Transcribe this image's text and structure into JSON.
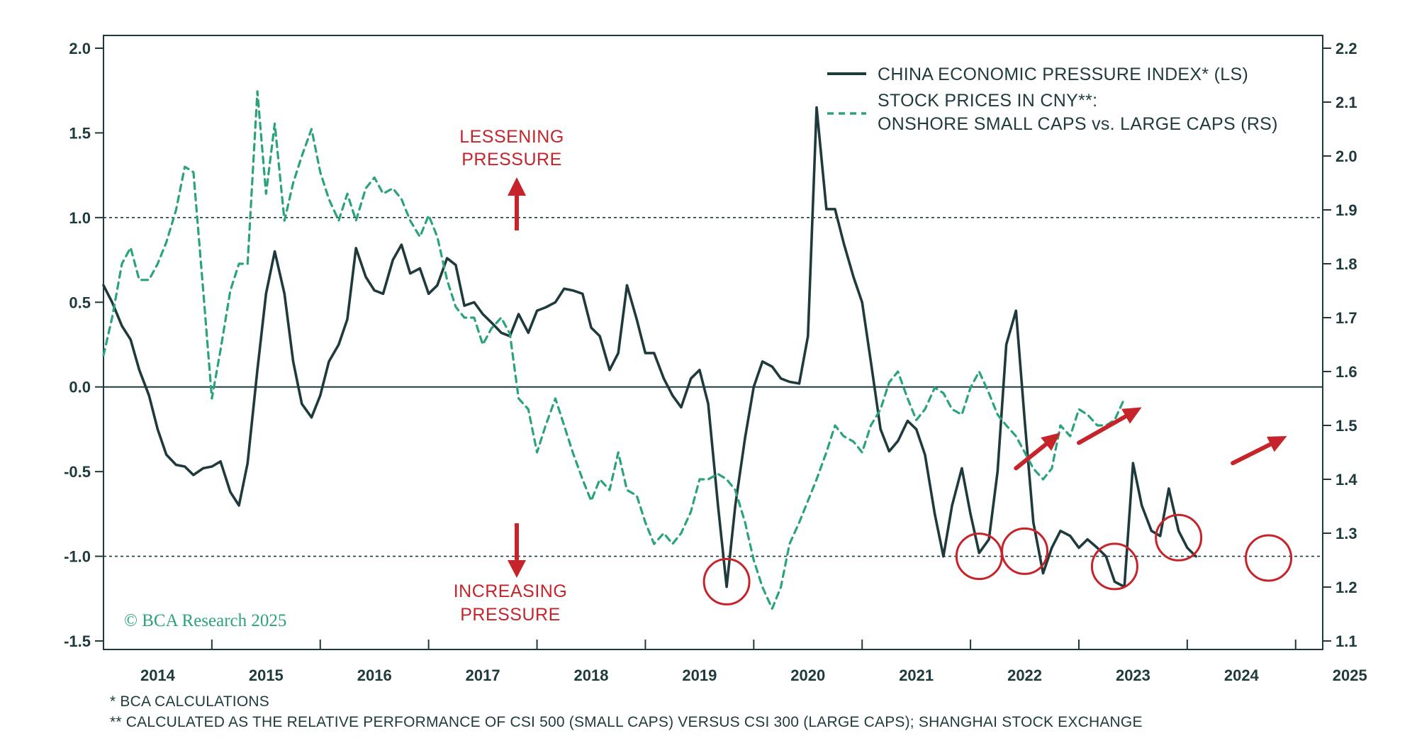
{
  "chart_data": {
    "type": "line",
    "legend": {
      "placement": "top-right",
      "entries": [
        {
          "label": "CHINA ECONOMIC PRESSURE INDEX* (LS)",
          "style": "solid"
        },
        {
          "label_lines": [
            "STOCK PRICES IN CNY**:",
            "ONSHORE SMALL CAPS vs. LARGE CAPS (RS)"
          ],
          "style": "dashed"
        }
      ]
    },
    "annotations": {
      "up": [
        "LESSENING",
        "PRESSURE"
      ],
      "down": [
        "INCREASING",
        "PRESSURE"
      ]
    },
    "credit": "© BCA Research 2025",
    "footnotes": [
      "*  BCA CALCULATIONS",
      "** CALCULATED AS THE RELATIVE PERFORMANCE OF CSI 500 (SMALL CAPS) VERSUS CSI 300 (LARGE CAPS); SHANGHAI STOCK EXCHANGE"
    ],
    "x_axis": {
      "range": [
        2013.5,
        2024.75
      ],
      "tick_labels": [
        "2014",
        "2015",
        "2016",
        "2017",
        "2018",
        "2019",
        "2020",
        "2021",
        "2022",
        "2023",
        "2024",
        "2025"
      ],
      "label_positions": [
        2014.0,
        2015.0,
        2016.0,
        2017.0,
        2018.0,
        2019.0,
        2020.0,
        2021.0,
        2022.0,
        2023.0,
        2024.0,
        2025.0
      ],
      "minor_ticks": [
        2013.5,
        2014.5,
        2015.5,
        2016.5,
        2017.5,
        2018.5,
        2019.5,
        2020.5,
        2021.5,
        2022.5,
        2023.5,
        2024.5
      ]
    },
    "y_left": {
      "range": [
        -1.5,
        2.0
      ],
      "ticks": [
        2.0,
        1.5,
        1.0,
        0.5,
        0.0,
        -0.5,
        -1.0,
        -1.5
      ],
      "tick_labels": [
        "2.0",
        "1.5",
        "1.0",
        "0.5",
        "0.0",
        "-0.5",
        "-1.0",
        "-1.5"
      ]
    },
    "y_right": {
      "range": [
        1.1,
        2.2
      ],
      "ticks": [
        2.2,
        2.1,
        2.0,
        1.9,
        1.8,
        1.7,
        1.6,
        1.5,
        1.4,
        1.3,
        1.2,
        1.1
      ],
      "tick_labels": [
        "2.2",
        "2.1",
        "2.0",
        "1.9",
        "1.8",
        "1.7",
        "1.6",
        "1.5",
        "1.4",
        "1.3",
        "1.2",
        "1.1"
      ]
    },
    "reference_lines_left": [
      {
        "y": 0.0,
        "style": "solid"
      },
      {
        "y": 1.0,
        "style": "dotted"
      },
      {
        "y": -1.0,
        "style": "dotted"
      }
    ],
    "series": [
      {
        "axis": "left",
        "color": "#1f3a3d",
        "style": "solid",
        "points": [
          [
            2013.5,
            0.6
          ],
          [
            2013.58,
            0.5
          ],
          [
            2013.67,
            0.36
          ],
          [
            2013.75,
            0.28
          ],
          [
            2013.83,
            0.1
          ],
          [
            2013.92,
            -0.05
          ],
          [
            2014.0,
            -0.25
          ],
          [
            2014.08,
            -0.4
          ],
          [
            2014.17,
            -0.46
          ],
          [
            2014.25,
            -0.47
          ],
          [
            2014.33,
            -0.52
          ],
          [
            2014.42,
            -0.48
          ],
          [
            2014.5,
            -0.47
          ],
          [
            2014.58,
            -0.44
          ],
          [
            2014.67,
            -0.62
          ],
          [
            2014.75,
            -0.7
          ],
          [
            2014.83,
            -0.45
          ],
          [
            2014.92,
            0.1
          ],
          [
            2015.0,
            0.55
          ],
          [
            2015.08,
            0.8
          ],
          [
            2015.17,
            0.55
          ],
          [
            2015.25,
            0.15
          ],
          [
            2015.33,
            -0.1
          ],
          [
            2015.42,
            -0.18
          ],
          [
            2015.5,
            -0.05
          ],
          [
            2015.58,
            0.15
          ],
          [
            2015.67,
            0.25
          ],
          [
            2015.75,
            0.4
          ],
          [
            2015.83,
            0.82
          ],
          [
            2015.92,
            0.65
          ],
          [
            2016.0,
            0.57
          ],
          [
            2016.08,
            0.55
          ],
          [
            2016.17,
            0.75
          ],
          [
            2016.25,
            0.84
          ],
          [
            2016.33,
            0.67
          ],
          [
            2016.42,
            0.7
          ],
          [
            2016.5,
            0.55
          ],
          [
            2016.58,
            0.6
          ],
          [
            2016.67,
            0.76
          ],
          [
            2016.75,
            0.72
          ],
          [
            2016.83,
            0.48
          ],
          [
            2016.92,
            0.5
          ],
          [
            2017.0,
            0.43
          ],
          [
            2017.08,
            0.38
          ],
          [
            2017.17,
            0.32
          ],
          [
            2017.25,
            0.3
          ],
          [
            2017.33,
            0.43
          ],
          [
            2017.42,
            0.32
          ],
          [
            2017.5,
            0.45
          ],
          [
            2017.58,
            0.47
          ],
          [
            2017.67,
            0.5
          ],
          [
            2017.75,
            0.58
          ],
          [
            2017.83,
            0.57
          ],
          [
            2017.92,
            0.55
          ],
          [
            2018.0,
            0.35
          ],
          [
            2018.08,
            0.3
          ],
          [
            2018.17,
            0.1
          ],
          [
            2018.25,
            0.2
          ],
          [
            2018.33,
            0.6
          ],
          [
            2018.42,
            0.4
          ],
          [
            2018.5,
            0.2
          ],
          [
            2018.58,
            0.2
          ],
          [
            2018.67,
            0.05
          ],
          [
            2018.75,
            -0.05
          ],
          [
            2018.83,
            -0.12
          ],
          [
            2018.92,
            0.05
          ],
          [
            2019.0,
            0.1
          ],
          [
            2019.08,
            -0.1
          ],
          [
            2019.17,
            -0.7
          ],
          [
            2019.25,
            -1.18
          ],
          [
            2019.33,
            -0.7
          ],
          [
            2019.42,
            -0.3
          ],
          [
            2019.5,
            0.0
          ],
          [
            2019.58,
            0.15
          ],
          [
            2019.67,
            0.12
          ],
          [
            2019.75,
            0.05
          ],
          [
            2019.83,
            0.03
          ],
          [
            2019.92,
            0.02
          ],
          [
            2020.0,
            0.3
          ],
          [
            2020.08,
            1.65
          ],
          [
            2020.17,
            1.05
          ],
          [
            2020.25,
            1.05
          ],
          [
            2020.33,
            0.85
          ],
          [
            2020.42,
            0.65
          ],
          [
            2020.5,
            0.5
          ],
          [
            2020.58,
            0.15
          ],
          [
            2020.67,
            -0.25
          ],
          [
            2020.75,
            -0.38
          ],
          [
            2020.83,
            -0.32
          ],
          [
            2020.92,
            -0.2
          ],
          [
            2021.0,
            -0.25
          ],
          [
            2021.08,
            -0.4
          ],
          [
            2021.17,
            -0.75
          ],
          [
            2021.25,
            -1.0
          ],
          [
            2021.33,
            -0.7
          ],
          [
            2021.42,
            -0.48
          ],
          [
            2021.5,
            -0.75
          ],
          [
            2021.58,
            -0.98
          ],
          [
            2021.67,
            -0.9
          ],
          [
            2021.75,
            -0.5
          ],
          [
            2021.83,
            0.25
          ],
          [
            2021.92,
            0.45
          ],
          [
            2022.0,
            -0.2
          ],
          [
            2022.08,
            -0.8
          ],
          [
            2022.17,
            -1.1
          ],
          [
            2022.25,
            -0.95
          ],
          [
            2022.33,
            -0.85
          ],
          [
            2022.42,
            -0.88
          ],
          [
            2022.5,
            -0.95
          ],
          [
            2022.58,
            -0.9
          ],
          [
            2022.67,
            -0.95
          ],
          [
            2022.75,
            -1.0
          ],
          [
            2022.83,
            -1.15
          ],
          [
            2022.92,
            -1.18
          ],
          [
            2023.0,
            -0.45
          ],
          [
            2023.08,
            -0.7
          ],
          [
            2023.17,
            -0.85
          ],
          [
            2023.25,
            -0.88
          ],
          [
            2023.33,
            -0.6
          ],
          [
            2023.42,
            -0.85
          ],
          [
            2023.5,
            -0.95
          ],
          [
            2023.58,
            -1.0
          ]
        ]
      },
      {
        "axis": "right",
        "color": "#2aa37a",
        "style": "dashed",
        "points": [
          [
            2013.5,
            1.63
          ],
          [
            2013.58,
            1.7
          ],
          [
            2013.67,
            1.8
          ],
          [
            2013.75,
            1.83
          ],
          [
            2013.83,
            1.77
          ],
          [
            2013.92,
            1.77
          ],
          [
            2014.0,
            1.8
          ],
          [
            2014.08,
            1.84
          ],
          [
            2014.17,
            1.9
          ],
          [
            2014.25,
            1.98
          ],
          [
            2014.33,
            1.97
          ],
          [
            2014.42,
            1.75
          ],
          [
            2014.5,
            1.55
          ],
          [
            2014.58,
            1.64
          ],
          [
            2014.67,
            1.75
          ],
          [
            2014.75,
            1.8
          ],
          [
            2014.83,
            1.8
          ],
          [
            2014.92,
            2.12
          ],
          [
            2015.0,
            1.93
          ],
          [
            2015.08,
            2.06
          ],
          [
            2015.17,
            1.88
          ],
          [
            2015.25,
            1.95
          ],
          [
            2015.33,
            2.0
          ],
          [
            2015.42,
            2.05
          ],
          [
            2015.5,
            1.97
          ],
          [
            2015.58,
            1.92
          ],
          [
            2015.67,
            1.88
          ],
          [
            2015.75,
            1.93
          ],
          [
            2015.83,
            1.88
          ],
          [
            2015.92,
            1.94
          ],
          [
            2016.0,
            1.96
          ],
          [
            2016.08,
            1.93
          ],
          [
            2016.17,
            1.94
          ],
          [
            2016.25,
            1.92
          ],
          [
            2016.33,
            1.88
          ],
          [
            2016.42,
            1.85
          ],
          [
            2016.5,
            1.89
          ],
          [
            2016.58,
            1.85
          ],
          [
            2016.67,
            1.77
          ],
          [
            2016.75,
            1.72
          ],
          [
            2016.83,
            1.7
          ],
          [
            2016.92,
            1.7
          ],
          [
            2017.0,
            1.65
          ],
          [
            2017.08,
            1.68
          ],
          [
            2017.17,
            1.7
          ],
          [
            2017.25,
            1.67
          ],
          [
            2017.33,
            1.55
          ],
          [
            2017.42,
            1.53
          ],
          [
            2017.5,
            1.45
          ],
          [
            2017.58,
            1.5
          ],
          [
            2017.67,
            1.55
          ],
          [
            2017.75,
            1.5
          ],
          [
            2017.83,
            1.45
          ],
          [
            2017.92,
            1.4
          ],
          [
            2018.0,
            1.36
          ],
          [
            2018.08,
            1.4
          ],
          [
            2018.17,
            1.38
          ],
          [
            2018.25,
            1.45
          ],
          [
            2018.33,
            1.38
          ],
          [
            2018.42,
            1.37
          ],
          [
            2018.5,
            1.32
          ],
          [
            2018.58,
            1.28
          ],
          [
            2018.67,
            1.3
          ],
          [
            2018.75,
            1.28
          ],
          [
            2018.83,
            1.3
          ],
          [
            2018.92,
            1.34
          ],
          [
            2019.0,
            1.4
          ],
          [
            2019.08,
            1.4
          ],
          [
            2019.17,
            1.41
          ],
          [
            2019.25,
            1.4
          ],
          [
            2019.33,
            1.38
          ],
          [
            2019.42,
            1.32
          ],
          [
            2019.5,
            1.25
          ],
          [
            2019.58,
            1.2
          ],
          [
            2019.67,
            1.16
          ],
          [
            2019.75,
            1.2
          ],
          [
            2019.83,
            1.28
          ],
          [
            2019.92,
            1.32
          ],
          [
            2020.0,
            1.36
          ],
          [
            2020.08,
            1.4
          ],
          [
            2020.17,
            1.45
          ],
          [
            2020.25,
            1.5
          ],
          [
            2020.33,
            1.48
          ],
          [
            2020.42,
            1.47
          ],
          [
            2020.5,
            1.45
          ],
          [
            2020.58,
            1.5
          ],
          [
            2020.67,
            1.53
          ],
          [
            2020.75,
            1.58
          ],
          [
            2020.83,
            1.6
          ],
          [
            2020.92,
            1.55
          ],
          [
            2021.0,
            1.51
          ],
          [
            2021.08,
            1.53
          ],
          [
            2021.17,
            1.57
          ],
          [
            2021.25,
            1.56
          ],
          [
            2021.33,
            1.53
          ],
          [
            2021.42,
            1.52
          ],
          [
            2021.5,
            1.57
          ],
          [
            2021.58,
            1.6
          ],
          [
            2021.67,
            1.56
          ],
          [
            2021.75,
            1.52
          ],
          [
            2021.83,
            1.5
          ],
          [
            2021.92,
            1.48
          ],
          [
            2022.0,
            1.45
          ],
          [
            2022.08,
            1.42
          ],
          [
            2022.17,
            1.4
          ],
          [
            2022.25,
            1.42
          ],
          [
            2022.33,
            1.5
          ],
          [
            2022.42,
            1.48
          ],
          [
            2022.5,
            1.53
          ],
          [
            2022.58,
            1.52
          ],
          [
            2022.67,
            1.5
          ],
          [
            2022.75,
            1.5
          ],
          [
            2022.83,
            1.51
          ],
          [
            2022.92,
            1.55
          ]
        ]
      }
    ],
    "trend_arrows_left": [
      {
        "from": [
          2021.92,
          -0.48
        ],
        "to": [
          2022.33,
          -0.27
        ]
      },
      {
        "from": [
          2022.5,
          -0.33
        ],
        "to": [
          2023.08,
          -0.12
        ]
      },
      {
        "from": [
          2023.92,
          -0.45
        ],
        "to": [
          2024.42,
          -0.29
        ]
      }
    ],
    "circled_troughs_left": [
      {
        "x": 2019.25,
        "y": -1.15
      },
      {
        "x": 2021.58,
        "y": -1.0
      },
      {
        "x": 2022.0,
        "y": -0.97
      },
      {
        "x": 2022.83,
        "y": -1.06
      },
      {
        "x": 2023.42,
        "y": -0.89
      },
      {
        "x": 2024.25,
        "y": -1.01
      }
    ]
  }
}
